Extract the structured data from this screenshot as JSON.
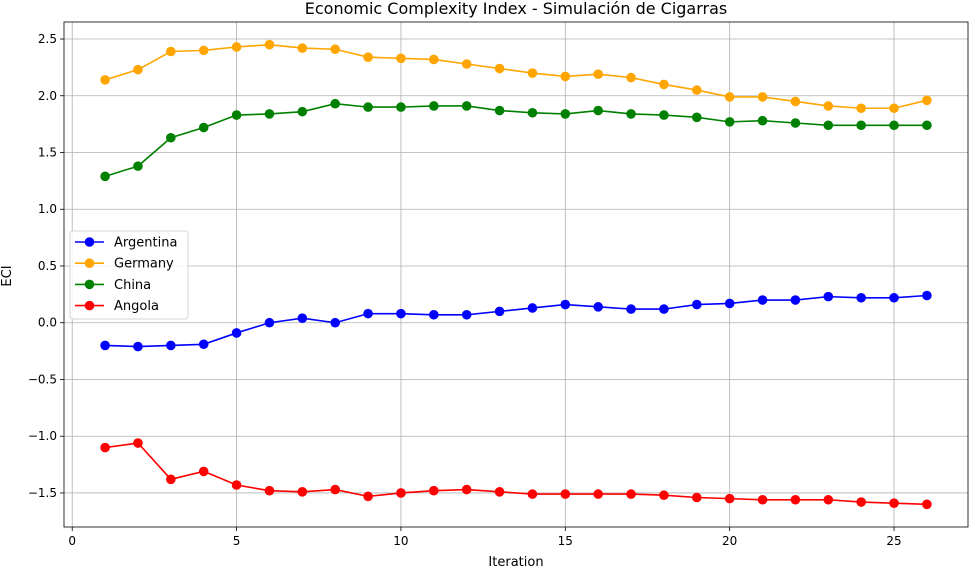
{
  "chart_data": {
    "type": "line",
    "title": "Economic Complexity Index - Simulación de Cigarras",
    "xlabel": "Iteration",
    "ylabel": "ECI",
    "xlim": [
      -0.25,
      27.25
    ],
    "ylim": [
      -1.8,
      2.65
    ],
    "xticks": [
      0,
      5,
      10,
      15,
      20,
      25
    ],
    "yticks": [
      -1.5,
      -1.0,
      -0.5,
      0.0,
      0.5,
      1.0,
      1.5,
      2.0,
      2.5
    ],
    "xtick_labels": [
      "0",
      "5",
      "10",
      "15",
      "20",
      "25"
    ],
    "ytick_labels": [
      "−1.5",
      "−1.0",
      "−0.5",
      "0.0",
      "0.5",
      "1.0",
      "1.5",
      "2.0",
      "2.5"
    ],
    "grid": true,
    "legend_position": "center-left",
    "x": [
      1,
      2,
      3,
      4,
      5,
      6,
      7,
      8,
      9,
      10,
      11,
      12,
      13,
      14,
      15,
      16,
      17,
      18,
      19,
      20,
      21,
      22,
      23,
      24,
      25,
      26
    ],
    "series": [
      {
        "name": "Argentina",
        "color": "#0000ff",
        "values": [
          -0.2,
          -0.21,
          -0.2,
          -0.19,
          -0.09,
          0.0,
          0.04,
          0.0,
          0.08,
          0.08,
          0.07,
          0.07,
          0.1,
          0.13,
          0.16,
          0.14,
          0.12,
          0.12,
          0.16,
          0.17,
          0.2,
          0.2,
          0.23,
          0.22,
          0.22,
          0.24
        ]
      },
      {
        "name": "Germany",
        "color": "#ffa500",
        "values": [
          2.14,
          2.23,
          2.39,
          2.4,
          2.43,
          2.45,
          2.42,
          2.41,
          2.34,
          2.33,
          2.32,
          2.28,
          2.24,
          2.2,
          2.17,
          2.19,
          2.16,
          2.1,
          2.05,
          1.99,
          1.99,
          1.95,
          1.91,
          1.89,
          1.89,
          1.96
        ]
      },
      {
        "name": "China",
        "color": "#008000",
        "values": [
          1.29,
          1.38,
          1.63,
          1.72,
          1.83,
          1.84,
          1.86,
          1.93,
          1.9,
          1.9,
          1.91,
          1.91,
          1.87,
          1.85,
          1.84,
          1.87,
          1.84,
          1.83,
          1.81,
          1.77,
          1.78,
          1.76,
          1.74,
          1.74,
          1.74,
          1.74
        ]
      },
      {
        "name": "Angola",
        "color": "#ff0000",
        "values": [
          -1.1,
          -1.06,
          -1.38,
          -1.31,
          -1.43,
          -1.48,
          -1.49,
          -1.47,
          -1.53,
          -1.5,
          -1.48,
          -1.47,
          -1.49,
          -1.51,
          -1.51,
          -1.51,
          -1.51,
          -1.52,
          -1.54,
          -1.55,
          -1.56,
          -1.56,
          -1.56,
          -1.58,
          -1.59,
          -1.6
        ]
      }
    ]
  }
}
